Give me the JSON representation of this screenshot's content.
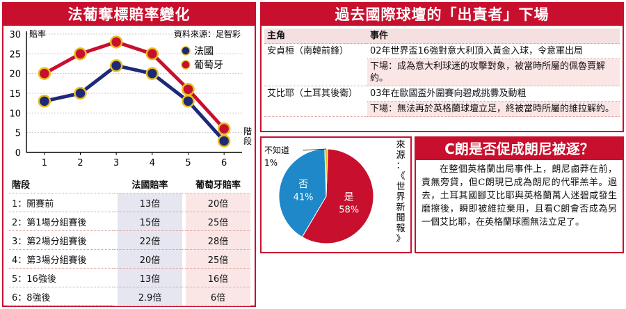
{
  "left_panel": {
    "title": "法葡奪標賠率變化",
    "source": "資料來源：足智彩",
    "table_headers": [
      "階段",
      "法國賠率",
      "葡萄牙賠率"
    ],
    "rows": [
      {
        "stage": "1：開賽前",
        "france": "13倍",
        "portugal": "20倍"
      },
      {
        "stage": "2：第1場分組賽後",
        "france": "15倍",
        "portugal": "25倍"
      },
      {
        "stage": "3：第2場分組賽後",
        "france": "22倍",
        "portugal": "28倍"
      },
      {
        "stage": "4：第3場分組賽後",
        "france": "20倍",
        "portugal": "25倍"
      },
      {
        "stage": "5：16強後",
        "france": "13倍",
        "portugal": "16倍"
      },
      {
        "stage": "6：8強後",
        "france": "2.9倍",
        "portugal": "6倍"
      }
    ]
  },
  "chart_data": [
    {
      "type": "line",
      "title": "法葡奪標賠率變化",
      "ylabel": "賠率",
      "xlabel": "階段",
      "x": [
        1,
        2,
        3,
        4,
        5,
        6
      ],
      "ylim": [
        0,
        30
      ],
      "yticks": [
        0,
        5,
        10,
        15,
        20,
        25,
        30
      ],
      "legend_position": "top-right",
      "series": [
        {
          "name": "法國",
          "values": [
            13,
            15,
            22,
            20,
            13,
            2.9
          ],
          "color": "#1e2a78"
        },
        {
          "name": "葡萄牙",
          "values": [
            20,
            25,
            28,
            25,
            16,
            6
          ],
          "color": "#c8102e"
        }
      ]
    },
    {
      "type": "pie",
      "source": "來源：《世界新聞報》",
      "slices": [
        {
          "label": "是",
          "value": 58,
          "text": "58%",
          "color": "#c8102e"
        },
        {
          "label": "否",
          "value": 41,
          "text": "41%",
          "color": "#1e88c8"
        },
        {
          "label": "不知道",
          "value": 1,
          "text": "1%",
          "color": "#e8c020"
        }
      ]
    }
  ],
  "right_top": {
    "title": "過去國際球壇的「出責者」下場",
    "headers": [
      "主角",
      "事件"
    ],
    "entries": [
      {
        "who": "安貞桓（南韓前鋒）",
        "event": "02年世界盃16強對意大利頂入黃金入球，令意軍出局",
        "result": "下場：成為意大利球迷的攻擊對象，被當時所屬的佩魯賈解約。"
      },
      {
        "who": "艾比耶（土耳其後衛）",
        "event": "03年在歐國盃外圍賽向碧咸挑釁及動粗",
        "result": "下場：無法再於英格蘭球壇立足，終被當時所屬的維拉解約。"
      }
    ]
  },
  "article": {
    "title": "C朗是否促成朗尼被逐？",
    "body": "在整個英格蘭出局事件上，朗尼鹵莽在前，責無旁貸，但C朗現已成為朗尼的代罪羔羊。過去，土耳其國腳艾比耶與英格蘭萬人迷碧咸發生磨擦後，瞬即被維拉棄用，且看C朗會否成為另一個艾比耶，在英格蘭球圈無法立足了。"
  }
}
